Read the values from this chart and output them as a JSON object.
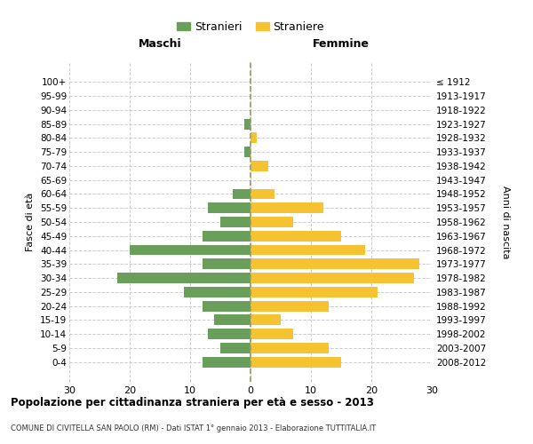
{
  "age_groups": [
    "100+",
    "95-99",
    "90-94",
    "85-89",
    "80-84",
    "75-79",
    "70-74",
    "65-69",
    "60-64",
    "55-59",
    "50-54",
    "45-49",
    "40-44",
    "35-39",
    "30-34",
    "25-29",
    "20-24",
    "15-19",
    "10-14",
    "5-9",
    "0-4"
  ],
  "birth_years": [
    "≤ 1912",
    "1913-1917",
    "1918-1922",
    "1923-1927",
    "1928-1932",
    "1933-1937",
    "1938-1942",
    "1943-1947",
    "1948-1952",
    "1953-1957",
    "1958-1962",
    "1963-1967",
    "1968-1972",
    "1973-1977",
    "1978-1982",
    "1983-1987",
    "1988-1992",
    "1993-1997",
    "1998-2002",
    "2003-2007",
    "2008-2012"
  ],
  "maschi": [
    0,
    0,
    0,
    1,
    0,
    1,
    0,
    0,
    3,
    7,
    5,
    8,
    20,
    8,
    22,
    11,
    8,
    6,
    7,
    5,
    8
  ],
  "femmine": [
    0,
    0,
    0,
    0,
    1,
    0,
    3,
    0,
    4,
    12,
    7,
    15,
    19,
    28,
    27,
    21,
    13,
    5,
    7,
    13,
    15
  ],
  "maschi_color": "#6a9e5b",
  "femmine_color": "#f5c332",
  "background_color": "#ffffff",
  "grid_color": "#cccccc",
  "zero_line_color": "#999966",
  "title": "Popolazione per cittadinanza straniera per età e sesso - 2013",
  "subtitle": "COMUNE DI CIVITELLA SAN PAOLO (RM) - Dati ISTAT 1° gennaio 2013 - Elaborazione TUTTITALIA.IT",
  "xlabel_left": "Maschi",
  "xlabel_right": "Femmine",
  "ylabel_left": "Fasce di età",
  "ylabel_right": "Anni di nascita",
  "legend_maschi": "Stranieri",
  "legend_femmine": "Straniere",
  "xlim": 30
}
